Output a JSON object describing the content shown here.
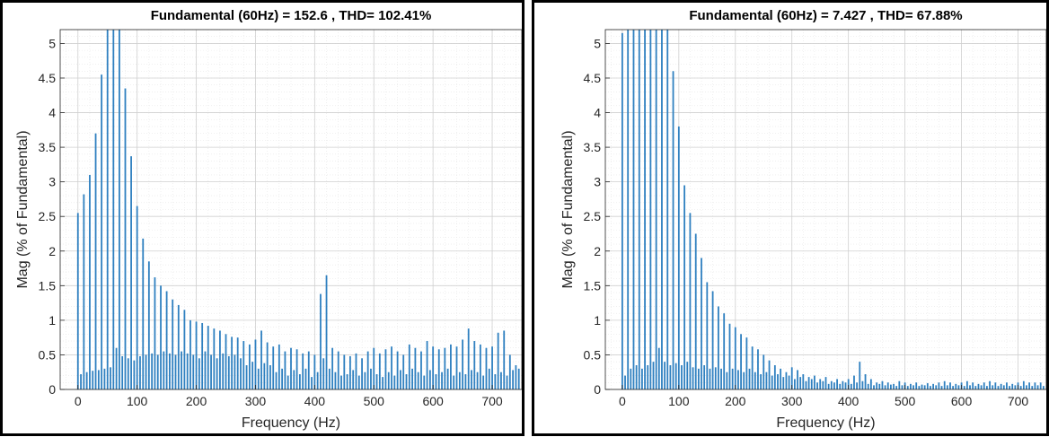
{
  "chart_data": [
    {
      "type": "bar",
      "title": "Fundamental (60Hz) = 152.6 , THD= 102.41%",
      "xlabel": "Frequency (Hz)",
      "ylabel": "Mag (% of Fundamental)",
      "xlim": [
        -30,
        750
      ],
      "ylim": [
        0,
        5.2
      ],
      "xticks": [
        "0",
        "100",
        "200",
        "300",
        "400",
        "500",
        "600",
        "700"
      ],
      "yticks": [
        "0",
        "0.5",
        "1",
        "1.5",
        "2",
        "2.5",
        "3",
        "3.5",
        "4",
        "4.5",
        "5"
      ],
      "grid": "minor",
      "bar_color": "#2f80c0",
      "series": [
        {
          "x": [
            0,
            10,
            20,
            30,
            40,
            50,
            60,
            70,
            80,
            90,
            100,
            110,
            120,
            130,
            140,
            150,
            160,
            170,
            180,
            190,
            200,
            210,
            220,
            230,
            240,
            250,
            260,
            270,
            280,
            290,
            300,
            310,
            320,
            330,
            340,
            350,
            360,
            370,
            380,
            390,
            400,
            410,
            420,
            430,
            440,
            450,
            460,
            470,
            480,
            490,
            500,
            510,
            520,
            530,
            540,
            550,
            560,
            570,
            580,
            590,
            600,
            610,
            620,
            630,
            640,
            650,
            660,
            670,
            680,
            690,
            700,
            710,
            720,
            730,
            740
          ],
          "values": [
            2.55,
            2.82,
            3.1,
            3.7,
            4.55,
            5.2,
            5.2,
            5.2,
            4.35,
            3.37,
            2.65,
            2.18,
            1.85,
            1.62,
            1.5,
            1.42,
            1.3,
            1.22,
            1.15,
            1.0,
            0.98,
            0.96,
            0.92,
            0.88,
            0.85,
            0.8,
            0.76,
            0.75,
            0.7,
            0.65,
            0.72,
            0.85,
            0.68,
            0.62,
            0.65,
            0.55,
            0.6,
            0.58,
            0.52,
            0.55,
            0.5,
            1.38,
            1.65,
            0.6,
            0.55,
            0.5,
            0.48,
            0.52,
            0.45,
            0.55,
            0.6,
            0.52,
            0.58,
            0.62,
            0.55,
            0.5,
            0.65,
            0.6,
            0.55,
            0.7,
            0.62,
            0.58,
            0.6,
            0.65,
            0.62,
            0.72,
            0.88,
            0.7,
            0.65,
            0.6,
            0.62,
            0.82,
            0.85,
            0.5,
            0.35
          ]
        },
        {
          "x": [
            5,
            15,
            25,
            35,
            45,
            55,
            65,
            75,
            85,
            95,
            105,
            115,
            125,
            135,
            145,
            155,
            165,
            175,
            185,
            195,
            205,
            215,
            225,
            235,
            245,
            255,
            265,
            275,
            285,
            295,
            305,
            315,
            325,
            335,
            345,
            355,
            365,
            375,
            385,
            395,
            405,
            415,
            425,
            435,
            445,
            455,
            465,
            475,
            485,
            495,
            505,
            515,
            525,
            535,
            545,
            555,
            565,
            575,
            585,
            595,
            605,
            615,
            625,
            635,
            645,
            655,
            665,
            675,
            685,
            695,
            705,
            715,
            725,
            735,
            745
          ],
          "values": [
            0.22,
            0.25,
            0.27,
            0.28,
            0.3,
            0.32,
            0.6,
            0.48,
            0.45,
            0.42,
            0.48,
            0.5,
            0.52,
            0.5,
            0.55,
            0.52,
            0.5,
            0.55,
            0.52,
            0.5,
            0.45,
            0.55,
            0.5,
            0.45,
            0.52,
            0.48,
            0.5,
            0.45,
            0.35,
            0.4,
            0.3,
            0.38,
            0.35,
            0.25,
            0.3,
            0.2,
            0.28,
            0.22,
            0.3,
            0.18,
            0.25,
            0.45,
            0.3,
            0.25,
            0.2,
            0.22,
            0.28,
            0.2,
            0.25,
            0.3,
            0.22,
            0.18,
            0.25,
            0.2,
            0.28,
            0.22,
            0.3,
            0.25,
            0.2,
            0.28,
            0.22,
            0.25,
            0.3,
            0.2,
            0.25,
            0.22,
            0.28,
            0.25,
            0.2,
            0.3,
            0.22,
            0.25,
            0.2,
            0.28,
            0.3
          ]
        }
      ]
    },
    {
      "type": "bar",
      "title": "Fundamental (60Hz) = 7.427 , THD= 67.88%",
      "xlabel": "Frequency (Hz)",
      "ylabel": "Mag (% of Fundamental)",
      "xlim": [
        -30,
        750
      ],
      "ylim": [
        0,
        5.2
      ],
      "xticks": [
        "0",
        "100",
        "200",
        "300",
        "400",
        "500",
        "600",
        "700"
      ],
      "yticks": [
        "0",
        "0.5",
        "1",
        "1.5",
        "2",
        "2.5",
        "3",
        "3.5",
        "4",
        "4.5",
        "5"
      ],
      "grid": "minor",
      "bar_color": "#2f80c0",
      "series": [
        {
          "x": [
            0,
            10,
            20,
            30,
            40,
            50,
            60,
            70,
            80,
            90,
            100,
            110,
            120,
            130,
            140,
            150,
            160,
            170,
            180,
            190,
            200,
            210,
            220,
            230,
            240,
            250,
            260,
            270,
            280,
            290,
            300,
            310,
            320,
            330,
            340,
            350,
            360,
            370,
            380,
            390,
            400,
            410,
            420,
            430,
            440,
            450,
            460,
            470,
            480,
            490,
            500,
            510,
            520,
            530,
            540,
            550,
            560,
            570,
            580,
            590,
            600,
            610,
            620,
            630,
            640,
            650,
            660,
            670,
            680,
            690,
            700,
            710,
            720,
            730,
            740
          ],
          "values": [
            5.15,
            5.2,
            5.2,
            5.2,
            5.2,
            5.2,
            5.2,
            5.2,
            5.2,
            4.6,
            3.8,
            2.95,
            2.55,
            2.25,
            1.9,
            1.55,
            1.42,
            1.2,
            1.1,
            0.95,
            0.9,
            0.8,
            0.75,
            0.62,
            0.58,
            0.5,
            0.42,
            0.35,
            0.3,
            0.25,
            0.32,
            0.28,
            0.22,
            0.18,
            0.2,
            0.15,
            0.18,
            0.12,
            0.15,
            0.12,
            0.15,
            0.2,
            0.4,
            0.22,
            0.15,
            0.1,
            0.12,
            0.1,
            0.08,
            0.12,
            0.1,
            0.08,
            0.1,
            0.07,
            0.09,
            0.08,
            0.1,
            0.12,
            0.1,
            0.08,
            0.1,
            0.12,
            0.1,
            0.08,
            0.1,
            0.12,
            0.1,
            0.08,
            0.1,
            0.08,
            0.1,
            0.12,
            0.1,
            0.1,
            0.1
          ]
        },
        {
          "x": [
            5,
            15,
            25,
            35,
            45,
            55,
            65,
            75,
            85,
            95,
            105,
            115,
            125,
            135,
            145,
            155,
            165,
            175,
            185,
            195,
            205,
            215,
            225,
            235,
            245,
            255,
            265,
            275,
            285,
            295,
            305,
            315,
            325,
            335,
            345,
            355,
            365,
            375,
            385,
            395,
            405,
            415,
            425,
            435,
            445,
            455,
            465,
            475,
            485,
            495,
            505,
            515,
            525,
            535,
            545,
            555,
            565,
            575,
            585,
            595,
            605,
            615,
            625,
            635,
            645,
            655,
            665,
            675,
            685,
            695,
            705,
            715,
            725,
            735,
            745
          ],
          "values": [
            0.2,
            0.3,
            0.35,
            0.3,
            0.35,
            0.4,
            0.6,
            0.4,
            0.35,
            0.38,
            0.35,
            0.4,
            0.32,
            0.3,
            0.35,
            0.3,
            0.32,
            0.3,
            0.25,
            0.3,
            0.28,
            0.25,
            0.3,
            0.25,
            0.22,
            0.25,
            0.2,
            0.22,
            0.18,
            0.2,
            0.15,
            0.18,
            0.12,
            0.15,
            0.1,
            0.12,
            0.08,
            0.1,
            0.08,
            0.1,
            0.08,
            0.1,
            0.12,
            0.08,
            0.06,
            0.08,
            0.06,
            0.07,
            0.05,
            0.06,
            0.05,
            0.06,
            0.05,
            0.06,
            0.05,
            0.06,
            0.05,
            0.06,
            0.05,
            0.06,
            0.05,
            0.06,
            0.05,
            0.06,
            0.05,
            0.06,
            0.05,
            0.06,
            0.05,
            0.06,
            0.05,
            0.06,
            0.05,
            0.06,
            0.05
          ]
        }
      ]
    }
  ]
}
